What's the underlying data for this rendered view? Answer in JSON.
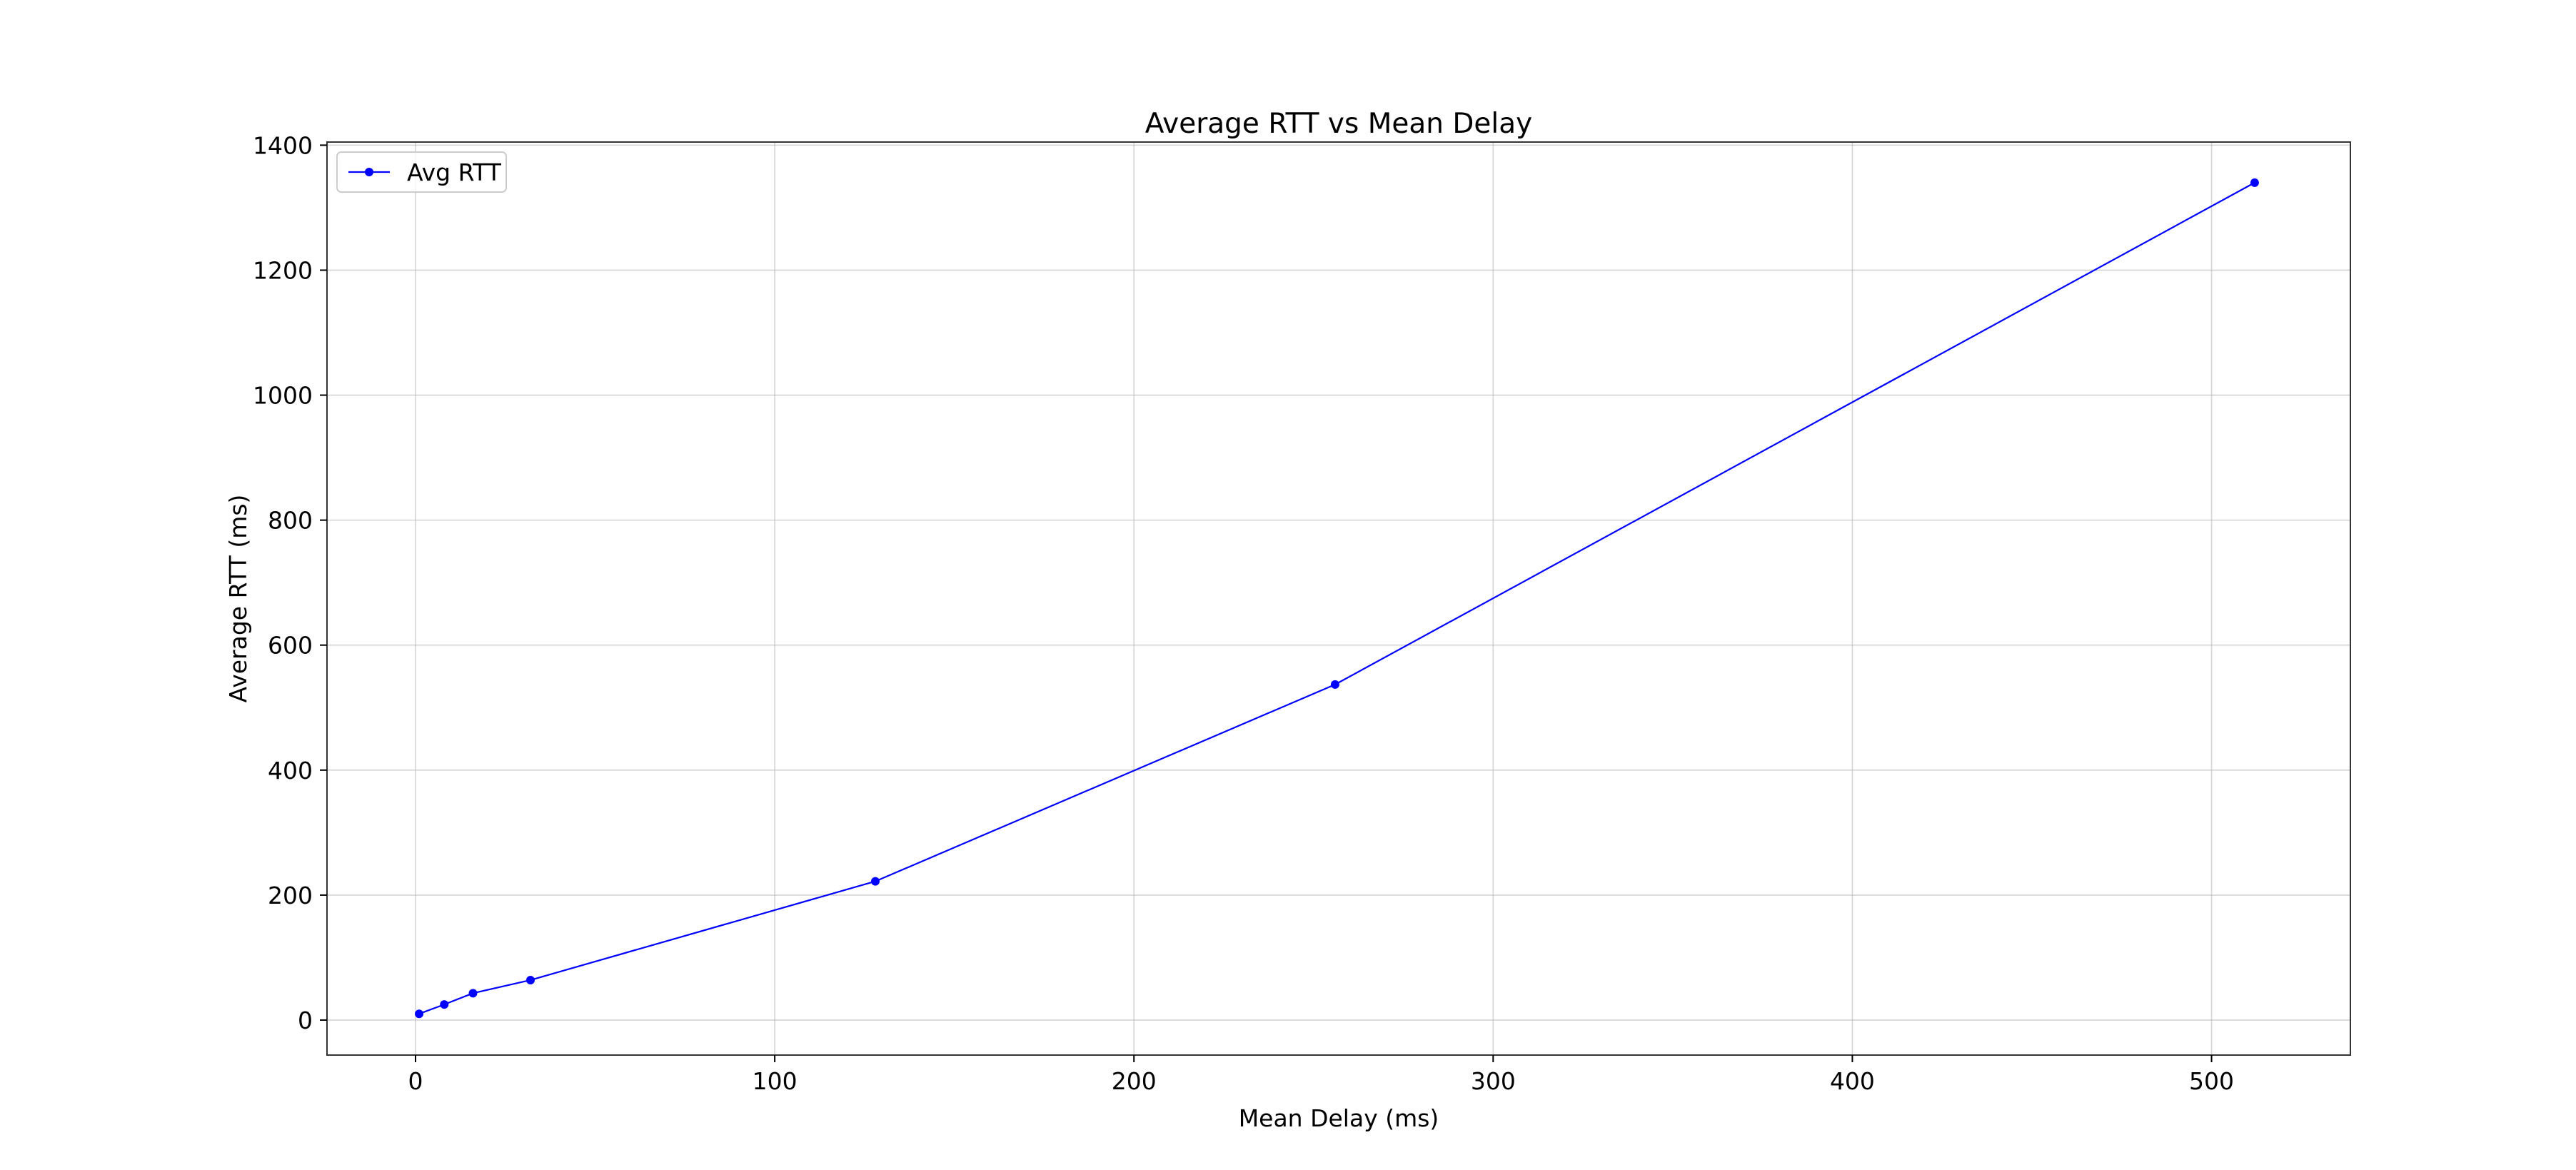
{
  "chart_data": {
    "type": "line",
    "title": "Average RTT vs Mean Delay",
    "xlabel": "Mean Delay (ms)",
    "ylabel": "Average RTT (ms)",
    "xlim": [
      -24.65,
      538.65
    ],
    "ylim": [
      -56,
      1405
    ],
    "xticks": [
      0,
      100,
      200,
      300,
      400,
      500
    ],
    "yticks": [
      0,
      200,
      400,
      600,
      800,
      1000,
      1200,
      1400
    ],
    "grid": true,
    "legend_position": "upper left",
    "series": [
      {
        "name": "Avg RTT",
        "color": "#0000ff",
        "marker": "circle",
        "x": [
          1,
          8,
          16,
          32,
          128,
          256,
          512
        ],
        "y": [
          10,
          25,
          43,
          64,
          222,
          537,
          1340
        ]
      }
    ]
  }
}
